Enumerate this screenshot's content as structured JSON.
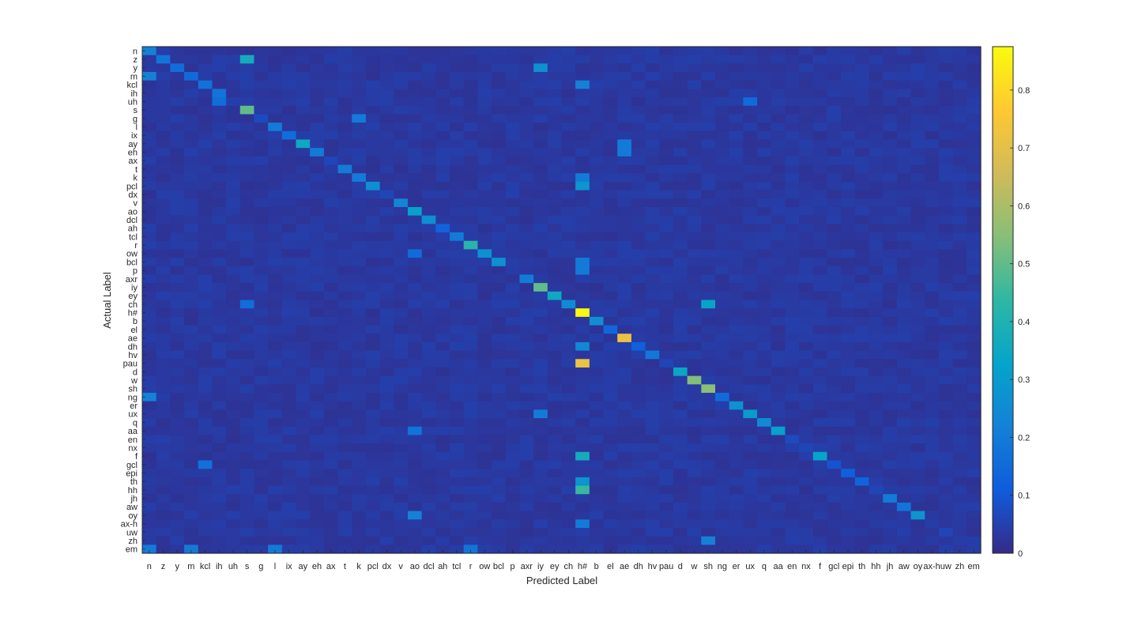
{
  "chart_data": {
    "type": "heatmap",
    "title": "",
    "xlabel": "Predicted Label",
    "ylabel": "Actual Label",
    "labels": [
      "n",
      "z",
      "y",
      "m",
      "kcl",
      "ih",
      "uh",
      "s",
      "g",
      "l",
      "ix",
      "ay",
      "eh",
      "ax",
      "t",
      "k",
      "pcl",
      "dx",
      "v",
      "ao",
      "dcl",
      "ah",
      "tcl",
      "r",
      "ow",
      "bcl",
      "p",
      "axr",
      "iy",
      "ey",
      "ch",
      "h#",
      "b",
      "el",
      "ae",
      "dh",
      "hv",
      "pau",
      "d",
      "w",
      "sh",
      "ng",
      "er",
      "ux",
      "q",
      "aa",
      "en",
      "nx",
      "f",
      "gcl",
      "epi",
      "th",
      "hh",
      "jh",
      "aw",
      "oy",
      "ax-h",
      "uw",
      "zh",
      "em"
    ],
    "x_tick_labels": [
      "n",
      "z",
      "y",
      "m",
      "kcl",
      "ih",
      "uh",
      "s",
      "g",
      "l",
      "ix",
      "ay",
      "eh",
      "ax",
      "t",
      "k",
      "pcl",
      "dx",
      "v",
      "ao",
      "dcl",
      "ah",
      "tcl",
      "r",
      "ow",
      "bcl",
      "p",
      "axr",
      "iy",
      "ey",
      "ch",
      "h#",
      "b",
      "el",
      "ae",
      "dh",
      "hv",
      "pau",
      "d",
      "w",
      "sh",
      "ng",
      "er",
      "ux",
      "q",
      "aa",
      "en",
      "nx",
      "f",
      "gcl",
      "epi",
      "th",
      "hh",
      "jh",
      "aw",
      "oy",
      "ax-h",
      "uw",
      "zh",
      "em"
    ],
    "diagonal": [
      0.22,
      0.18,
      0.16,
      0.15,
      0.17,
      0.18,
      0.0,
      0.5,
      0.07,
      0.2,
      0.16,
      0.35,
      0.2,
      0.06,
      0.2,
      0.2,
      0.26,
      0.06,
      0.23,
      0.32,
      0.26,
      0.13,
      0.2,
      0.42,
      0.27,
      0.27,
      0.04,
      0.2,
      0.5,
      0.35,
      0.25,
      0.87,
      0.26,
      0.14,
      0.72,
      0.12,
      0.19,
      0.06,
      0.34,
      0.54,
      0.55,
      0.15,
      0.27,
      0.3,
      0.25,
      0.32,
      0.07,
      0.06,
      0.33,
      0.09,
      0.12,
      0.13,
      0.06,
      0.2,
      0.18,
      0.28,
      0.04,
      0.06,
      0.03,
      0.04
    ],
    "off_diagonal_peaks": [
      {
        "actual": "z",
        "predicted": "s",
        "value": 0.37
      },
      {
        "actual": "y",
        "predicted": "iy",
        "value": 0.27
      },
      {
        "actual": "m",
        "predicted": "n",
        "value": 0.22
      },
      {
        "actual": "kcl",
        "predicted": "h#",
        "value": 0.22
      },
      {
        "actual": "ih",
        "predicted": "ih",
        "value": 0.18
      },
      {
        "actual": "uh",
        "predicted": "ih",
        "value": 0.16
      },
      {
        "actual": "uh",
        "predicted": "ux",
        "value": 0.15
      },
      {
        "actual": "g",
        "predicted": "k",
        "value": 0.2
      },
      {
        "actual": "ay",
        "predicted": "ae",
        "value": 0.2
      },
      {
        "actual": "eh",
        "predicted": "ae",
        "value": 0.2
      },
      {
        "actual": "pcl",
        "predicted": "h#",
        "value": 0.28
      },
      {
        "actual": "k",
        "predicted": "h#",
        "value": 0.2
      },
      {
        "actual": "ow",
        "predicted": "ao",
        "value": 0.15
      },
      {
        "actual": "bcl",
        "predicted": "h#",
        "value": 0.2
      },
      {
        "actual": "p",
        "predicted": "h#",
        "value": 0.2
      },
      {
        "actual": "ch",
        "predicted": "sh",
        "value": 0.33
      },
      {
        "actual": "ch",
        "predicted": "s",
        "value": 0.16
      },
      {
        "actual": "dh",
        "predicted": "h#",
        "value": 0.24
      },
      {
        "actual": "pau",
        "predicted": "h#",
        "value": 0.72
      },
      {
        "actual": "ng",
        "predicted": "n",
        "value": 0.22
      },
      {
        "actual": "ux",
        "predicted": "iy",
        "value": 0.2
      },
      {
        "actual": "aa",
        "predicted": "ao",
        "value": 0.18
      },
      {
        "actual": "f",
        "predicted": "h#",
        "value": 0.37
      },
      {
        "actual": "gcl",
        "predicted": "kcl",
        "value": 0.17
      },
      {
        "actual": "th",
        "predicted": "h#",
        "value": 0.28
      },
      {
        "actual": "hh",
        "predicted": "h#",
        "value": 0.45
      },
      {
        "actual": "oy",
        "predicted": "ao",
        "value": 0.22
      },
      {
        "actual": "ax-h",
        "predicted": "h#",
        "value": 0.2
      },
      {
        "actual": "zh",
        "predicted": "sh",
        "value": 0.22
      },
      {
        "actual": "em",
        "predicted": "n",
        "value": 0.2
      },
      {
        "actual": "em",
        "predicted": "m",
        "value": 0.2
      },
      {
        "actual": "em",
        "predicted": "l",
        "value": 0.2
      },
      {
        "actual": "em",
        "predicted": "r",
        "value": 0.18
      }
    ],
    "background_level": 0.03,
    "colorbar": {
      "colormap": "parula",
      "range": [
        0,
        0.875
      ],
      "ticks": [
        0,
        0.1,
        0.2,
        0.3,
        0.4,
        0.5,
        0.6,
        0.7,
        0.8
      ],
      "tick_labels": [
        "0",
        "0.1",
        "0.2",
        "0.3",
        "0.4",
        "0.5",
        "0.6",
        "0.7",
        "0.8"
      ]
    }
  }
}
